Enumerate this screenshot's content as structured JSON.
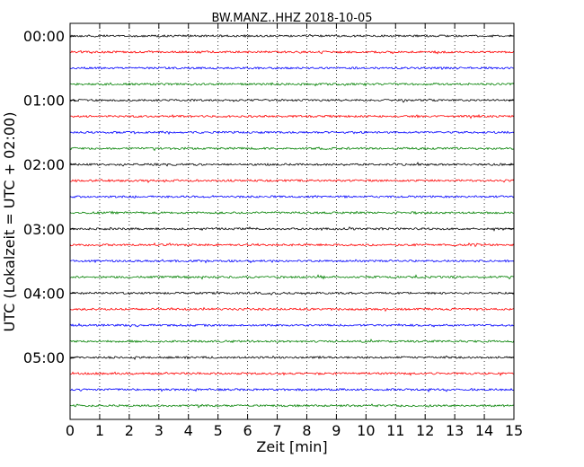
{
  "chart_data": {
    "type": "line",
    "title": "BW.MANZ..HHZ 2018-10-05",
    "xlabel": "Zeit  [min]",
    "ylabel": "UTC (Lokalzeit = UTC + 02:00)",
    "xlim": [
      0,
      15
    ],
    "x_ticks": [
      "0",
      "1",
      "2",
      "3",
      "4",
      "5",
      "6",
      "7",
      "8",
      "9",
      "10",
      "11",
      "12",
      "13",
      "14",
      "15"
    ],
    "y_tick_labels": [
      "00:00",
      "01:00",
      "02:00",
      "03:00",
      "04:00",
      "05:00"
    ],
    "grid": "vertical-dotted",
    "trace_colors": [
      "#000000",
      "#ff0000",
      "#0000ff",
      "#008000"
    ],
    "traces": [
      {
        "start": "00:00"
      },
      {
        "start": "00:15"
      },
      {
        "start": "00:30"
      },
      {
        "start": "00:45"
      },
      {
        "start": "01:00"
      },
      {
        "start": "01:15"
      },
      {
        "start": "01:30"
      },
      {
        "start": "01:45"
      },
      {
        "start": "02:00"
      },
      {
        "start": "02:15"
      },
      {
        "start": "02:30"
      },
      {
        "start": "02:45"
      },
      {
        "start": "03:00"
      },
      {
        "start": "03:15"
      },
      {
        "start": "03:30"
      },
      {
        "start": "03:45"
      },
      {
        "start": "04:00"
      },
      {
        "start": "04:15"
      },
      {
        "start": "04:30"
      },
      {
        "start": "04:45"
      },
      {
        "start": "05:00"
      },
      {
        "start": "05:15"
      },
      {
        "start": "05:30"
      },
      {
        "start": "05:45"
      }
    ]
  }
}
